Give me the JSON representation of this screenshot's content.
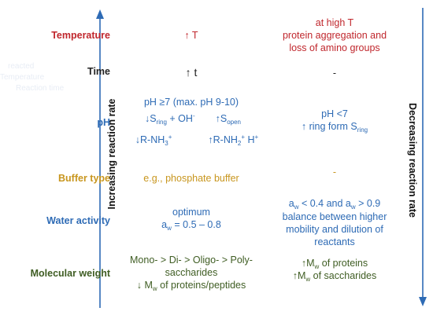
{
  "colors": {
    "temperature": "#c0272d",
    "time": "#222222",
    "ph": "#2e6bb5",
    "buffer": "#c8961e",
    "water": "#2e6bb5",
    "molecular": "#3f5d23",
    "arrow": "#2e6bb5"
  },
  "axes": {
    "left": "Increasing reaction rate",
    "right": "Decreasing reaction rate"
  },
  "rows": {
    "temperature": {
      "label": "Temperature",
      "increase": "↑ T",
      "decrease": [
        "at high T",
        "protein aggregation and",
        "loss of amino groups"
      ]
    },
    "time": {
      "label": "Time",
      "increase": "↑ t",
      "decrease": "-"
    },
    "ph": {
      "label": "pH",
      "increase_line1": "pH ≥7 (max. pH 9-10)",
      "eq1": {
        "arrow_left": "↓S",
        "sub_left": "ring",
        "plus": " + OH",
        "sup_oh": "-",
        "arrow_right": "↑S",
        "sub_right": "open"
      },
      "eq2": {
        "left": "↓R-NH",
        "left_sub": "3",
        "left_sup": "+",
        "right": "↑R-NH",
        "right_sub": "2",
        "right_sup": "+",
        "h": " H",
        "h_sup": "+"
      },
      "decrease_line1": "pH <7",
      "decrease_line2": "↑ ring form S",
      "decrease_sub": "ring"
    },
    "buffer": {
      "label": "Buffer type",
      "increase": "e.g., phosphate buffer",
      "decrease": "-"
    },
    "water": {
      "label": "Water activity",
      "increase_line1": "optimum",
      "increase_aw": "a",
      "increase_aw_sub": "w",
      "increase_range": " = 0.5 – 0.8",
      "decrease_a1": "a",
      "decrease_sub1": "w",
      "decrease_mid": " < 0.4 and a",
      "decrease_sub2": "w",
      "decrease_end": " > 0.9",
      "decrease_rest": [
        "balance between higher",
        "mobility and dilution of",
        "reactants"
      ]
    },
    "molecular": {
      "label": "Molecular weight",
      "increase_line1": "Mono- > Di- > Oligo- > Poly-",
      "increase_line2": "saccharides",
      "increase_line3_a": "↓ M",
      "increase_line3_sub": "w",
      "increase_line3_b": " of proteins/peptides",
      "decrease_line1_a": "↑M",
      "decrease_line1_sub": "w",
      "decrease_line1_b": " of proteins",
      "decrease_line2_a": "↑M",
      "decrease_line2_sub": "w",
      "decrease_line2_b": " of saccharides"
    }
  },
  "ghost_text": [
    "reacted",
    "Temperature",
    "Reaction time"
  ]
}
